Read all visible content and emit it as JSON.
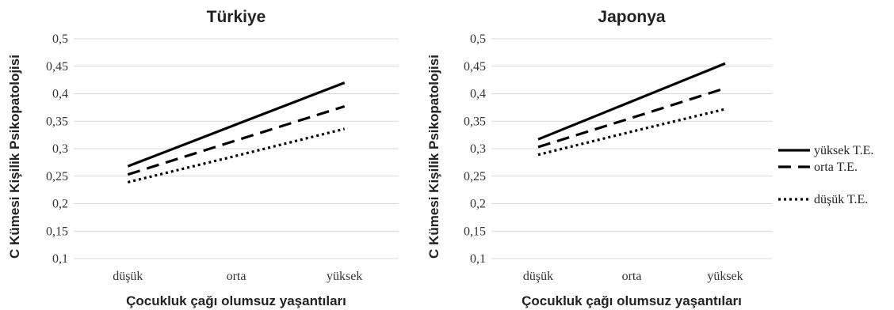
{
  "chart_data": [
    {
      "type": "line",
      "title": "Türkiye",
      "xlabel": "Çocukluk çağı olumsuz yaşantıları",
      "ylabel": "C Kümesi Kişilik Psikopatolojisi",
      "categories": [
        "düşük",
        "orta",
        "yüksek"
      ],
      "yticks": [
        "0,1",
        "0,15",
        "0,2",
        "0,25",
        "0,3",
        "0,35",
        "0,4",
        "0,45",
        "0,5"
      ],
      "ylim": [
        0.1,
        0.5
      ],
      "grid": true,
      "series": [
        {
          "name": "yüksek T.E.",
          "style": "solid",
          "values": [
            0.268,
            0.344,
            0.42
          ]
        },
        {
          "name": "orta T.E.",
          "style": "dashed",
          "values": [
            0.253,
            0.315,
            0.377
          ]
        },
        {
          "name": "düşük T.E.",
          "style": "dotted",
          "values": [
            0.239,
            0.287,
            0.336
          ]
        }
      ]
    },
    {
      "type": "line",
      "title": "Japonya",
      "xlabel": "Çocukluk çağı olumsuz yaşantıları",
      "ylabel": "C Kümesi Kişilik Psikopatolojisi",
      "categories": [
        "düşük",
        "orta",
        "yüksek"
      ],
      "yticks": [
        "0,1",
        "0,15",
        "0,2",
        "0,25",
        "0,3",
        "0,35",
        "0,4",
        "0,45",
        "0,5"
      ],
      "ylim": [
        0.1,
        0.5
      ],
      "grid": true,
      "legend": "right",
      "series": [
        {
          "name": "yüksek T.E.",
          "style": "solid",
          "values": [
            0.317,
            0.386,
            0.455
          ]
        },
        {
          "name": "orta T.E.",
          "style": "dashed",
          "values": [
            0.303,
            0.356,
            0.41
          ]
        },
        {
          "name": "düşük T.E.",
          "style": "dotted",
          "values": [
            0.289,
            0.331,
            0.372
          ]
        }
      ]
    }
  ]
}
